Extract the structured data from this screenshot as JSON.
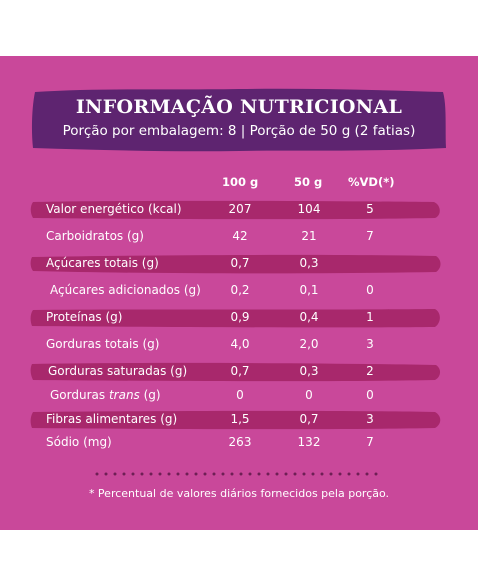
{
  "header": {
    "title": "INFORMAÇÃO NUTRICIONAL",
    "subtitle": "Porção por embalagem: 8 | Porção de 50 g (2 fatias)"
  },
  "columns": {
    "col_100": "100 g",
    "col_50": "50 g",
    "col_vd": "%VD(*)"
  },
  "rows": [
    {
      "name": "Valor energético (kcal)",
      "v100": "207",
      "v50": "104",
      "vd": "5"
    },
    {
      "name": "Carboidratos (g)",
      "v100": "42",
      "v50": "21",
      "vd": "7"
    },
    {
      "name": "Açúcares totais (g)",
      "v100": "0,7",
      "v50": "0,3",
      "vd": ""
    },
    {
      "name": "Açúcares adicionados (g)",
      "v100": "0,2",
      "v50": "0,1",
      "vd": "0"
    },
    {
      "name": "Proteínas (g)",
      "v100": "0,9",
      "v50": "0,4",
      "vd": "1"
    },
    {
      "name": "Gorduras totais (g)",
      "v100": "4,0",
      "v50": "2,0",
      "vd": "3"
    },
    {
      "name": "Gorduras saturadas (g)",
      "v100": "0,7",
      "v50": "0,3",
      "vd": "2"
    },
    {
      "name_prefix": "Gorduras ",
      "name_italic": "trans",
      "name_suffix": " (g)",
      "v100": "0",
      "v50": "0",
      "vd": "0"
    },
    {
      "name": "Fibras alimentares (g)",
      "v100": "1,5",
      "v50": "0,7",
      "vd": "3"
    },
    {
      "name": "Sódio (mg)",
      "v100": "263",
      "v50": "132",
      "vd": "7"
    }
  ],
  "footnote": "* Percentual de valores diários fornecidos pela porção.",
  "colors": {
    "panel": "#c9489a",
    "banner": "#5e2470",
    "stripe": "#a8286c",
    "text": "#ffffff"
  }
}
